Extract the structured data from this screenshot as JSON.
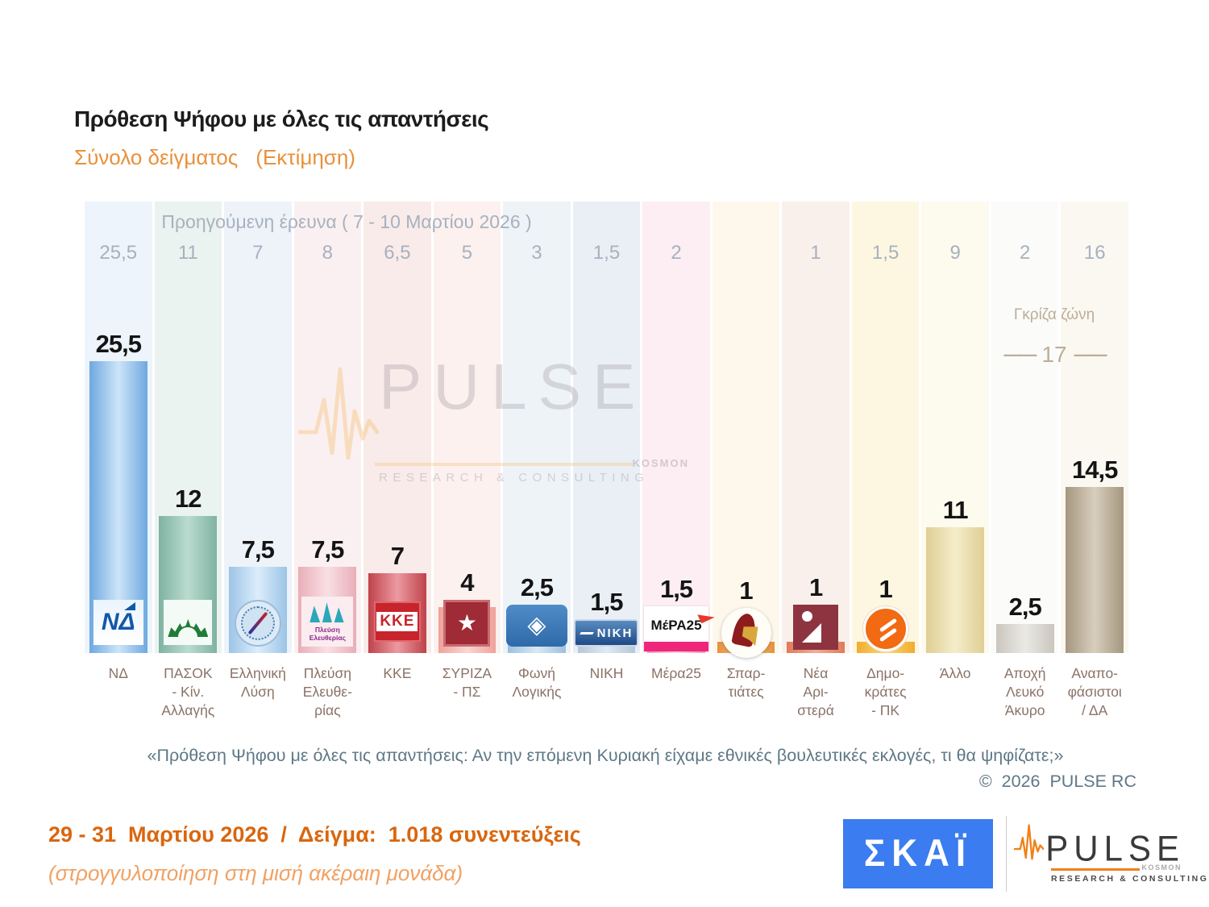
{
  "header": {
    "title": "Πρόθεση Ψήφου με όλες τις απαντήσεις",
    "subtitle": "Σύνολο δείγματος",
    "subtitle_note": "(Εκτίμηση)"
  },
  "previous_survey": {
    "label": "Προηγούμενη έρευνα ( 7 - 10 Μαρτίου 2026 )"
  },
  "gray_zone": {
    "label": "Γκρίζα ζώνη",
    "value_label": "17",
    "dash": "——"
  },
  "watermark": {
    "text": "PULSE",
    "kosmon": "KOSMON",
    "sub": "RESEARCH & CONSULTING"
  },
  "chart_data": {
    "type": "bar",
    "title": "Πρόθεση Ψήφου με όλες τις απαντήσεις",
    "subtitle": "Σύνολο δείγματος (Εκτίμηση)",
    "categories": [
      "ΝΔ",
      "ΠΑΣΟΚ - Κίν. Αλλαγής",
      "Ελληνική Λύση",
      "Πλεύση Ελευθερίας",
      "ΚΚΕ",
      "ΣΥΡΙΖΑ - ΠΣ",
      "Φωνή Λογικής",
      "ΝΙΚΗ",
      "Μέρα25",
      "Σπαρτιάτες",
      "Νέα Αριστερά",
      "Δημοκράτες - ΠΚ",
      "Άλλο",
      "Αποχή Λευκό Άκυρο",
      "Αναποφάσιστοι / ΔΑ"
    ],
    "series": [
      {
        "name": "Εκτίμηση (29 - 31 Μαρτίου 2026)",
        "values": [
          25.5,
          12,
          7.5,
          7.5,
          7,
          4,
          2.5,
          1.5,
          1.5,
          1,
          1,
          1,
          11,
          2.5,
          14.5
        ]
      },
      {
        "name": "Προηγούμενη έρευνα ( 7 - 10 Μαρτίου 2026 )",
        "values": [
          25.5,
          11,
          7,
          8,
          6.5,
          5,
          3,
          1.5,
          2,
          null,
          1,
          1.5,
          9,
          2,
          16
        ]
      }
    ],
    "gray_zone": {
      "label": "Γκρίζα ζώνη",
      "value": 17,
      "applies_to": [
        "Αποχή Λευκό Άκυρο",
        "Αναποφάσιστοι / ΔΑ"
      ]
    },
    "ylim": [
      0,
      27
    ],
    "grid": false,
    "legend_position": "none"
  },
  "parties": [
    {
      "name_label": "ΝΔ",
      "prev_label": "25,5",
      "value_label": "25,5",
      "value": 25.5,
      "column_bg": "#edf4fb",
      "bar_edge": "#6ea9e0",
      "bar_center": "#cde4f8",
      "logo": {
        "type": "nd",
        "text": "ΝΔ"
      }
    },
    {
      "name_label": "ΠΑΣΟΚ\n- Κίν.\nΑλλαγής",
      "prev_label": "11",
      "value_label": "12",
      "value": 12,
      "column_bg": "#ebf3f0",
      "bar_edge": "#7fb2a2",
      "bar_center": "#badcd0",
      "logo": {
        "type": "pasok",
        "text": ""
      }
    },
    {
      "name_label": "Ελληνική\nΛύση",
      "prev_label": "7",
      "value_label": "7,5",
      "value": 7.5,
      "column_bg": "#edf3f9",
      "bar_edge": "#9cc4e6",
      "bar_center": "#dcedfb",
      "logo": {
        "type": "ellysi",
        "text": ""
      }
    },
    {
      "name_label": "Πλεύση\nΕλευθε-\nρίας",
      "prev_label": "8",
      "value_label": "7,5",
      "value": 7.5,
      "column_bg": "#fbf0f1",
      "bar_edge": "#e9aeb8",
      "bar_center": "#f9dfe4",
      "logo": {
        "type": "pleusi",
        "text": "Πλεύση\nΕλευθερίας"
      }
    },
    {
      "name_label": "ΚΚΕ",
      "prev_label": "6,5",
      "value_label": "7",
      "value": 7,
      "column_bg": "#f9ebe9",
      "bar_edge": "#bf424a",
      "bar_center": "#ec9aa1",
      "logo": {
        "type": "kke",
        "text": "ΚΚΕ"
      }
    },
    {
      "name_label": "ΣΥΡΙΖΑ\n- ΠΣ",
      "prev_label": "5",
      "value_label": "4",
      "value": 4,
      "column_bg": "#fcf1ee",
      "bar_edge": "#efa29a",
      "bar_center": "#fad6d1",
      "logo": {
        "type": "syriza",
        "text": "★"
      }
    },
    {
      "name_label": "Φωνή\nΛογικής",
      "prev_label": "3",
      "value_label": "2,5",
      "value": 2.5,
      "column_bg": "#eef3f8",
      "bar_edge": "#9cc0de",
      "bar_center": "#d9e9f6",
      "logo": {
        "type": "foni",
        "text": "◈"
      }
    },
    {
      "name_label": "ΝΙΚΗ",
      "prev_label": "1,5",
      "value_label": "1,5",
      "value": 1.5,
      "column_bg": "#e9eff5",
      "bar_edge": "#b6c7d8",
      "bar_center": "#e0eaf2",
      "logo": {
        "type": "niki",
        "text": "ΝΙΚΗ"
      }
    },
    {
      "name_label": "Μέρα25",
      "prev_label": "2",
      "value_label": "1,5",
      "value": 1.5,
      "column_bg": "#fceef2",
      "bar_edge": "#f2a0bd",
      "bar_center": "#fad7e5",
      "logo": {
        "type": "mera25",
        "text": "ΜέΡΑ25"
      }
    },
    {
      "name_label": "Σπαρ-\nτιάτες",
      "prev_label": "",
      "value_label": "1",
      "value": 1,
      "column_bg": "#fdf8eb",
      "bar_edge": "#e6913f",
      "bar_center": "#f6c98e",
      "logo": {
        "type": "spartiates",
        "text": ""
      }
    },
    {
      "name_label": "Νέα\nΑρι-\nστερά",
      "prev_label": "1",
      "value_label": "1",
      "value": 1,
      "column_bg": "#faf0eb",
      "bar_edge": "#e07a5a",
      "bar_center": "#f0ae98",
      "logo": {
        "type": "neaaristera",
        "text": ""
      }
    },
    {
      "name_label": "Δημο-\nκράτες\n- ΠΚ",
      "prev_label": "1,5",
      "value_label": "1",
      "value": 1,
      "column_bg": "#fdf7e2",
      "bar_edge": "#f2ac2e",
      "bar_center": "#fbd878",
      "logo": {
        "type": "dimokrates",
        "text": ""
      }
    },
    {
      "name_label": "Άλλο",
      "prev_label": "9",
      "value_label": "11",
      "value": 11,
      "column_bg": "#fdfaee",
      "bar_edge": "#dfcf94",
      "bar_center": "#f5ecca",
      "logo": null
    },
    {
      "name_label": "Αποχή\nΛευκό\nΆκυρο",
      "prev_label": "2",
      "value_label": "2,5",
      "value": 2.5,
      "column_bg": "#fbfbfa",
      "bar_edge": "#cac6be",
      "bar_center": "#ebe9e4",
      "logo": null
    },
    {
      "name_label": "Αναπο-\nφάσιστοι\n/ ΔΑ",
      "prev_label": "16",
      "value_label": "14,5",
      "value": 14.5,
      "column_bg": "#faf8f1",
      "bar_edge": "#a5977f",
      "bar_center": "#d8cebd",
      "logo": null
    }
  ],
  "footer": {
    "quote": "«Πρόθεση Ψήφου με όλες τις απαντήσεις: Αν την επόμενη Κυριακή είχαμε εθνικές βουλευτικές εκλογές, τι θα ψηφίζατε;»",
    "copyright": "©  2026  PULSE RC"
  },
  "bottom": {
    "line1": "29 - 31  Μαρτίου 2026  /  Δείγμα:  1.018 συνεντεύξεις",
    "line2": "(στρογγυλοποίηση στη μισή ακέραιη μονάδα)",
    "skai_logo_text": "ΣΚΑΪ",
    "pulse_logo_text": "PULSE",
    "pulse_logo_kosmon": "KOSMON",
    "pulse_logo_sub": "RESEARCH & CONSULTING"
  },
  "colors": {
    "accent_orange": "#e8913c",
    "prev_text": "#a7b1bf",
    "party_label": "#8b7266",
    "gray_zone_text": "#bcae98",
    "footer_text": "#5e7887",
    "bottom_line1": "#d9660e",
    "bottom_line2": "#f0a163",
    "skai_blue": "#3b7cf0",
    "pulse_orange": "#f08018"
  }
}
